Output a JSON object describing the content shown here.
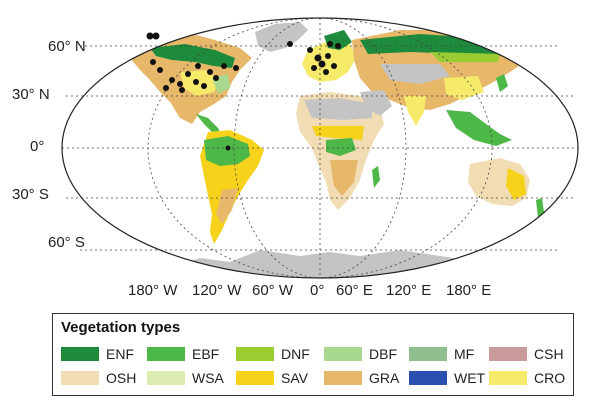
{
  "map": {
    "lat_labels": [
      "60° N",
      "30° N",
      "0°",
      "30° S",
      "60° S"
    ],
    "lon_labels": [
      "180° W",
      "120° W",
      "60° W",
      "0°",
      "60° E",
      "120° E",
      "180° E"
    ],
    "colors": {
      "ocean": "#ffffff",
      "ice": "#c4c4c4",
      "site_marker": "#111111",
      "grid": "#444444"
    }
  },
  "legend": {
    "title": "Vegetation types",
    "items": [
      {
        "code": "ENF",
        "color": "#1e8a3c"
      },
      {
        "code": "EBF",
        "color": "#4db848"
      },
      {
        "code": "DNF",
        "color": "#9acd32"
      },
      {
        "code": "DBF",
        "color": "#a9d98e"
      },
      {
        "code": "MF",
        "color": "#8fbf8f"
      },
      {
        "code": "CSH",
        "color": "#c99a9a"
      },
      {
        "code": "OSH",
        "color": "#f2dcb4"
      },
      {
        "code": "WSA",
        "color": "#dcebb0"
      },
      {
        "code": "SAV",
        "color": "#f7d21a"
      },
      {
        "code": "GRA",
        "color": "#e8b86a"
      },
      {
        "code": "WET",
        "color": "#2a4fb0"
      },
      {
        "code": "CRO",
        "color": "#f5ea6a"
      }
    ]
  }
}
